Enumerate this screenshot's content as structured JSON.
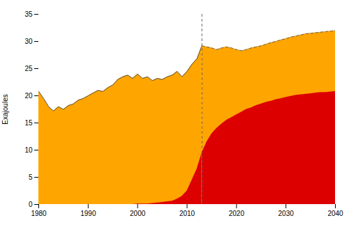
{
  "chart_data": {
    "type": "area",
    "ylabel": "Exajoules",
    "xlim": [
      1980,
      2040
    ],
    "ylim": [
      0,
      35
    ],
    "xticks": [
      1980,
      1990,
      2000,
      2010,
      2020,
      2030,
      2040
    ],
    "yticks": [
      0,
      5,
      10,
      15,
      20,
      25,
      30,
      35
    ],
    "stacked": false,
    "grid": false,
    "series": [
      {
        "type": "area",
        "color": "#FFA500",
        "x": [
          1980,
          1981,
          1982,
          1983,
          1984,
          1985,
          1986,
          1987,
          1988,
          1989,
          1990,
          1991,
          1992,
          1993,
          1994,
          1995,
          1996,
          1997,
          1998,
          1999,
          2000,
          2001,
          2002,
          2003,
          2004,
          2005,
          2006,
          2007,
          2008,
          2009,
          2010,
          2011,
          2012,
          2013
        ],
        "values": [
          20.8,
          19.5,
          18.0,
          17.2,
          18.0,
          17.5,
          18.2,
          18.5,
          19.2,
          19.5,
          20.0,
          20.5,
          21.0,
          20.8,
          21.5,
          22.0,
          23.0,
          23.5,
          23.8,
          23.2,
          24.0,
          23.2,
          23.5,
          22.8,
          23.2,
          23.0,
          23.5,
          23.8,
          24.5,
          23.5,
          24.5,
          25.8,
          26.8,
          29.2
        ]
      },
      {
        "type": "area",
        "color": "#DD0000",
        "x": [
          1980,
          1981,
          1982,
          1983,
          1984,
          1985,
          1986,
          1987,
          1988,
          1989,
          1990,
          1991,
          1992,
          1993,
          1994,
          1995,
          1996,
          1997,
          1998,
          1999,
          2000,
          2001,
          2002,
          2003,
          2004,
          2005,
          2006,
          2007,
          2008,
          2009,
          2010,
          2011,
          2012,
          2013
        ],
        "values": [
          0.0,
          0.0,
          0.0,
          0.0,
          0.0,
          0.0,
          0.0,
          0.0,
          0.0,
          0.0,
          0.0,
          0.0,
          0.0,
          0.0,
          0.0,
          0.0,
          0.0,
          0.0,
          0.0,
          0.0,
          0.1,
          0.1,
          0.1,
          0.2,
          0.3,
          0.4,
          0.5,
          0.6,
          1.0,
          1.5,
          2.5,
          4.5,
          6.5,
          9.5
        ]
      },
      {
        "type": "line",
        "color": "#555555",
        "line_style": "solid",
        "x": [
          1980,
          1981,
          1982,
          1983,
          1984,
          1985,
          1986,
          1987,
          1988,
          1989,
          1990,
          1991,
          1992,
          1993,
          1994,
          1995,
          1996,
          1997,
          1998,
          1999,
          2000,
          2001,
          2002,
          2003,
          2004,
          2005,
          2006,
          2007,
          2008,
          2009,
          2010,
          2011,
          2012,
          2013
        ],
        "values": [
          20.8,
          19.5,
          18.0,
          17.2,
          18.0,
          17.5,
          18.2,
          18.5,
          19.2,
          19.5,
          20.0,
          20.5,
          21.0,
          20.8,
          21.5,
          22.0,
          23.0,
          23.5,
          23.8,
          23.2,
          24.0,
          23.2,
          23.5,
          22.8,
          23.2,
          23.0,
          23.5,
          23.8,
          24.5,
          23.5,
          24.5,
          25.8,
          26.8,
          29.2
        ]
      },
      {
        "type": "area",
        "color": "#FFA500",
        "x": [
          2013,
          2014,
          2015,
          2016,
          2017,
          2018,
          2019,
          2020,
          2021,
          2022,
          2023,
          2024,
          2025,
          2026,
          2027,
          2028,
          2029,
          2030,
          2031,
          2032,
          2033,
          2034,
          2035,
          2036,
          2037,
          2038,
          2039,
          2040
        ],
        "values": [
          29.2,
          29.0,
          28.8,
          28.5,
          28.8,
          29.0,
          28.8,
          28.5,
          28.3,
          28.5,
          28.8,
          29.0,
          29.2,
          29.5,
          29.8,
          30.0,
          30.3,
          30.5,
          30.8,
          31.0,
          31.2,
          31.4,
          31.5,
          31.6,
          31.7,
          31.8,
          31.9,
          32.0
        ]
      },
      {
        "type": "area",
        "color": "#DD0000",
        "x": [
          2013,
          2014,
          2015,
          2016,
          2017,
          2018,
          2019,
          2020,
          2021,
          2022,
          2023,
          2024,
          2025,
          2026,
          2027,
          2028,
          2029,
          2030,
          2031,
          2032,
          2033,
          2034,
          2035,
          2036,
          2037,
          2038,
          2039,
          2040
        ],
        "values": [
          9.5,
          11.5,
          13.0,
          14.0,
          14.8,
          15.5,
          16.0,
          16.5,
          17.0,
          17.5,
          17.8,
          18.2,
          18.5,
          18.8,
          19.0,
          19.3,
          19.5,
          19.7,
          19.9,
          20.1,
          20.2,
          20.3,
          20.4,
          20.5,
          20.6,
          20.6,
          20.7,
          20.8
        ]
      },
      {
        "type": "line",
        "color": "#666666",
        "line_style": "dashed",
        "x": [
          2013,
          2014,
          2015,
          2016,
          2017,
          2018,
          2019,
          2020,
          2021,
          2022,
          2023,
          2024,
          2025,
          2026,
          2027,
          2028,
          2029,
          2030,
          2031,
          2032,
          2033,
          2034,
          2035,
          2036,
          2037,
          2038,
          2039,
          2040
        ],
        "values": [
          29.2,
          29.0,
          28.8,
          28.5,
          28.8,
          29.0,
          28.8,
          28.5,
          28.3,
          28.5,
          28.8,
          29.0,
          29.2,
          29.5,
          29.8,
          30.0,
          30.3,
          30.5,
          30.8,
          31.0,
          31.2,
          31.4,
          31.5,
          31.6,
          31.7,
          31.8,
          31.9,
          32.0
        ]
      },
      {
        "type": "vline",
        "color": "#666666",
        "line_style": "dashed",
        "x": [
          2013
        ]
      }
    ]
  }
}
